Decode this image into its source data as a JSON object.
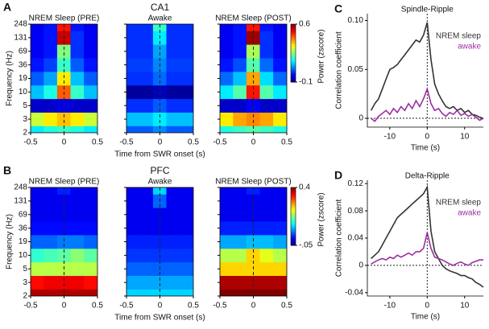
{
  "chart_data": [
    {
      "type": "heatmap",
      "panel": "A",
      "title": "NREM Sleep (PRE)",
      "ylabel": "Frequency (Hz)",
      "x": [
        -0.4,
        -0.2,
        0,
        0.2,
        0.4
      ],
      "xlim": [
        -0.5,
        0.5
      ],
      "xticks": [
        -0.5,
        0,
        0.5
      ],
      "vline": 0,
      "y": [
        2,
        3,
        5,
        10,
        19,
        36,
        69,
        131,
        248
      ],
      "clim": [
        -0.1,
        0.6
      ],
      "z": [
        [
          0.15,
          0.18,
          0.2,
          0.18,
          0.15
        ],
        [
          0.3,
          0.35,
          0.38,
          0.35,
          0.3
        ],
        [
          -0.05,
          -0.05,
          -0.03,
          -0.05,
          -0.05
        ],
        [
          0.12,
          0.18,
          0.45,
          0.2,
          0.12
        ],
        [
          0.05,
          0.1,
          0.35,
          0.12,
          0.05
        ],
        [
          0,
          0.03,
          0.2,
          0.05,
          0
        ],
        [
          -0.02,
          0,
          0.25,
          0.02,
          -0.02
        ],
        [
          -0.02,
          0,
          0.55,
          0.02,
          -0.02
        ],
        [
          -0.02,
          0,
          0.5,
          0,
          -0.02
        ]
      ]
    },
    {
      "type": "heatmap",
      "group": "CA1",
      "title": "Awake",
      "xlabel": "Time from SWR onset (s)",
      "x": [
        -0.4,
        -0.2,
        0,
        0.2,
        0.4
      ],
      "xlim": [
        -0.5,
        0.5
      ],
      "xticks": [
        -0.5,
        0,
        0.5
      ],
      "vline": 0,
      "y": [
        2,
        3,
        5,
        10,
        19,
        36,
        69,
        131,
        248
      ],
      "clim": [
        -0.1,
        0.6
      ],
      "z": [
        [
          0.05,
          0.05,
          0.08,
          0.05,
          0.05
        ],
        [
          0.12,
          0.12,
          0.15,
          0.12,
          0.12
        ],
        [
          0.02,
          0.02,
          0.05,
          0.02,
          0.02
        ],
        [
          -0.08,
          -0.08,
          -0.06,
          -0.08,
          -0.08
        ],
        [
          0.02,
          0.02,
          0.06,
          0.02,
          0.02
        ],
        [
          0.03,
          0.03,
          0.08,
          0.03,
          0.03
        ],
        [
          0.02,
          0.02,
          0.1,
          0.02,
          0.02
        ],
        [
          0.02,
          0.02,
          0.15,
          0.02,
          0.02
        ],
        [
          0.02,
          0.02,
          0.2,
          0.02,
          0.02
        ]
      ]
    },
    {
      "type": "heatmap",
      "title": "NREM Sleep (POST)",
      "colorbar_label": "Power (zscore)",
      "cticks": [
        -0.1,
        0.6
      ],
      "x": [
        -0.4,
        -0.2,
        0,
        0.2,
        0.4
      ],
      "xlim": [
        -0.5,
        0.5
      ],
      "xticks": [
        -0.5,
        0,
        0.5
      ],
      "vline": 0,
      "y": [
        2,
        3,
        5,
        10,
        19,
        36,
        69,
        131,
        248
      ],
      "clim": [
        -0.1,
        0.6
      ],
      "z": [
        [
          0.18,
          0.2,
          0.22,
          0.2,
          0.18
        ],
        [
          0.35,
          0.4,
          0.42,
          0.4,
          0.35
        ],
        [
          -0.05,
          -0.05,
          -0.02,
          -0.05,
          -0.05
        ],
        [
          0.15,
          0.22,
          0.5,
          0.22,
          0.15
        ],
        [
          0.06,
          0.12,
          0.4,
          0.14,
          0.06
        ],
        [
          0,
          0.04,
          0.22,
          0.06,
          0
        ],
        [
          -0.02,
          0,
          0.28,
          0.02,
          -0.02
        ],
        [
          -0.02,
          0,
          0.58,
          0.02,
          -0.02
        ],
        [
          -0.02,
          0,
          0.5,
          0,
          -0.02
        ]
      ]
    },
    {
      "type": "heatmap",
      "panel": "B",
      "title": "NREM Sleep (PRE)",
      "ylabel": "Frequency (Hz)",
      "x": [
        -0.4,
        -0.2,
        0,
        0.2,
        0.4
      ],
      "xlim": [
        -0.5,
        0.5
      ],
      "xticks": [
        -0.5,
        0,
        0.5
      ],
      "vline": 0,
      "y": [
        2,
        3,
        5,
        10,
        19,
        36,
        69,
        131,
        248
      ],
      "clim": [
        -0.05,
        0.4
      ],
      "z": [
        [
          0.38,
          0.38,
          0.38,
          0.38,
          0.38
        ],
        [
          0.34,
          0.35,
          0.35,
          0.35,
          0.34
        ],
        [
          0.2,
          0.2,
          0.2,
          0.2,
          0.2
        ],
        [
          0.14,
          0.15,
          0.16,
          0.18,
          0.16
        ],
        [
          0.05,
          0.05,
          0.06,
          0.06,
          0.05
        ],
        [
          0.01,
          0.01,
          0.01,
          0.01,
          0.01
        ],
        [
          0,
          0,
          0,
          0,
          0
        ],
        [
          0,
          0,
          0,
          0,
          0
        ],
        [
          0,
          0,
          0.02,
          0,
          0
        ]
      ]
    },
    {
      "type": "heatmap",
      "group": "PFC",
      "title": "Awake",
      "xlabel": "Time from SWR onset (s)",
      "x": [
        -0.4,
        -0.2,
        0,
        0.2,
        0.4
      ],
      "xlim": [
        -0.5,
        0.5
      ],
      "xticks": [
        -0.5,
        0,
        0.5
      ],
      "vline": 0,
      "y": [
        2,
        3,
        5,
        10,
        19,
        36,
        69,
        131,
        248
      ],
      "clim": [
        -0.05,
        0.4
      ],
      "z": [
        [
          0.1,
          0.1,
          0.1,
          0.1,
          0.1
        ],
        [
          0.08,
          0.08,
          0.08,
          0.08,
          0.08
        ],
        [
          0.05,
          0.05,
          0.05,
          0.05,
          0.05
        ],
        [
          0.03,
          0.03,
          0.03,
          0.03,
          0.03
        ],
        [
          0.02,
          0.02,
          0.02,
          0.02,
          0.02
        ],
        [
          0,
          0,
          0,
          0,
          0
        ],
        [
          0,
          0,
          0,
          0,
          0
        ],
        [
          0,
          0,
          0.05,
          0,
          0
        ],
        [
          0,
          0,
          0.1,
          0,
          0
        ]
      ]
    },
    {
      "type": "heatmap",
      "title": "NREM Sleep (POST)",
      "colorbar_label": "Power (zscore)",
      "cticks": [
        0.4,
        {
          "value": -0.05,
          "label": "-.05"
        }
      ],
      "x": [
        -0.4,
        -0.2,
        0,
        0.2,
        0.4
      ],
      "xlim": [
        -0.5,
        0.5
      ],
      "xticks": [
        -0.5,
        0,
        0.5
      ],
      "vline": 0,
      "y": [
        2,
        3,
        5,
        10,
        19,
        36,
        69,
        131,
        248
      ],
      "clim": [
        -0.05,
        0.4
      ],
      "z": [
        [
          0.4,
          0.4,
          0.4,
          0.4,
          0.4
        ],
        [
          0.38,
          0.38,
          0.38,
          0.38,
          0.38
        ],
        [
          0.25,
          0.25,
          0.25,
          0.25,
          0.25
        ],
        [
          0.2,
          0.2,
          0.25,
          0.22,
          0.2
        ],
        [
          0.08,
          0.08,
          0.09,
          0.09,
          0.08
        ],
        [
          0.02,
          0.02,
          0.02,
          0.02,
          0.02
        ],
        [
          0,
          0,
          0,
          0,
          0
        ],
        [
          0,
          0,
          0,
          0,
          0
        ],
        [
          0,
          0,
          0.02,
          0,
          0
        ]
      ]
    },
    {
      "type": "line",
      "panel": "C",
      "title": "Spindle-Ripple",
      "xlabel": "Time (s)",
      "ylabel": "Correlation coefficient",
      "legend": "upper right",
      "vline": 0,
      "hline": 0,
      "x": [
        -15,
        -14,
        -13,
        -12,
        -11,
        -10,
        -9,
        -8,
        -7,
        -6,
        -5,
        -4,
        -3,
        -2,
        -1,
        0,
        1,
        2,
        3,
        4,
        5,
        6,
        7,
        8,
        9,
        10,
        11,
        12,
        13,
        14,
        15
      ],
      "xlim": [
        -16,
        15
      ],
      "xticks": [
        -10,
        0,
        10
      ],
      "ylim": [
        -0.009,
        0.107
      ],
      "yticks": [
        0,
        0.05,
        {
          "value": 0.1,
          "label": "0.10"
        }
      ],
      "series": [
        {
          "name": "NREM sleep",
          "color": "#333333",
          "values": [
            0.008,
            0.015,
            0.02,
            0.03,
            0.04,
            0.05,
            0.052,
            0.055,
            0.06,
            0.065,
            0.07,
            0.075,
            0.08,
            0.078,
            0.085,
            0.098,
            0.06,
            0.035,
            0.025,
            0.018,
            0.012,
            0.01,
            0.012,
            0.008,
            0.01,
            0.006,
            0.008,
            0.004,
            0.003,
            0.001,
            0
          ]
        },
        {
          "name": "awake",
          "color": "#9b2fa0",
          "values": [
            0,
            -0.003,
            0.002,
            0.005,
            0.008,
            0.004,
            0.01,
            0.006,
            0.012,
            0.008,
            0.015,
            0.01,
            0.018,
            0.012,
            0.02,
            0.03,
            0.015,
            0.008,
            0.01,
            0.005,
            0.002,
            0.006,
            0.004,
            0.008,
            0.003,
            0.005,
            0.002,
            0.004,
            0.001,
            -0.002,
            0
          ]
        }
      ]
    },
    {
      "type": "line",
      "panel": "D",
      "title": "Delta-Ripple",
      "xlabel": "Time (s)",
      "ylabel": "Correlation coefficient",
      "legend": "upper right",
      "vline": 0,
      "hline": 0,
      "x": [
        -15,
        -14,
        -13,
        -12,
        -11,
        -10,
        -9,
        -8,
        -7,
        -6,
        -5,
        -4,
        -3,
        -2,
        -1,
        0,
        1,
        2,
        3,
        4,
        5,
        6,
        7,
        8,
        9,
        10,
        11,
        12,
        13,
        14,
        15
      ],
      "xlim": [
        -16,
        15
      ],
      "xticks": [
        -10,
        0,
        10
      ],
      "ylim": [
        -0.045,
        0.125
      ],
      "yticks": [
        -0.04,
        0,
        0.04,
        0.08,
        0.12
      ],
      "series": [
        {
          "name": "NREM sleep",
          "color": "#333333",
          "values": [
            0.01,
            0.015,
            0.02,
            0.03,
            0.04,
            0.05,
            0.06,
            0.07,
            0.075,
            0.08,
            0.085,
            0.09,
            0.095,
            0.1,
            0.105,
            0.115,
            0.05,
            0.02,
            0.01,
            0,
            -0.005,
            -0.008,
            -0.01,
            -0.012,
            -0.015,
            -0.015,
            -0.018,
            -0.02,
            -0.025,
            -0.028,
            -0.032
          ]
        },
        {
          "name": "awake",
          "color": "#9b2fa0",
          "values": [
            0.002,
            0.005,
            0.008,
            0.01,
            0.008,
            0.012,
            0.01,
            0.015,
            0.012,
            0.015,
            0.018,
            0.015,
            0.02,
            0.02,
            0.025,
            0.048,
            0.025,
            0.012,
            0.01,
            0.008,
            0.005,
            0.002,
            0,
            0.003,
            0.005,
            0.002,
            0,
            0.004,
            0.006,
            0.008,
            0.008
          ]
        }
      ]
    }
  ]
}
